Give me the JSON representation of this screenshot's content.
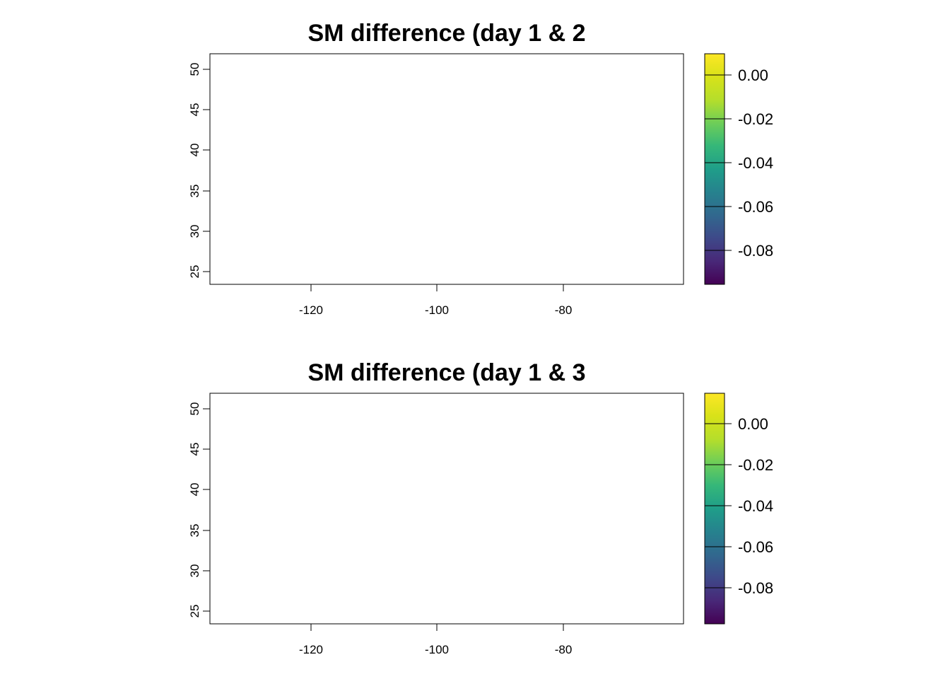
{
  "chart_data": [
    {
      "type": "heatmap",
      "title": "SM difference (day 1 & 2",
      "xlim": [
        -135,
        -60
      ],
      "ylim": [
        23.5,
        52
      ],
      "x_ticks": [
        -120,
        -100,
        -80
      ],
      "x_tick_labels": [
        "-120",
        "-100",
        "-80"
      ],
      "y_ticks": [
        25,
        30,
        35,
        40,
        45,
        50
      ],
      "y_tick_labels": [
        "25",
        "30",
        "35",
        "40",
        "45",
        "50"
      ],
      "legend": {
        "placement": "right",
        "range": [
          -0.096,
          0.01
        ],
        "ticks": [
          0.0,
          -0.02,
          -0.04,
          -0.06,
          -0.08
        ],
        "tick_labels": [
          "0.00",
          "-0.02",
          "-0.04",
          "-0.06",
          "-0.08"
        ]
      },
      "colors": {
        "land_typical": "#b5de2b",
        "min_color": "#440154",
        "max_color": "#fde725"
      },
      "grid": false
    },
    {
      "type": "heatmap",
      "title": "SM difference (day 1 & 3",
      "xlim": [
        -135,
        -60
      ],
      "ylim": [
        23.5,
        52
      ],
      "x_ticks": [
        -120,
        -100,
        -80
      ],
      "x_tick_labels": [
        "-120",
        "-100",
        "-80"
      ],
      "y_ticks": [
        25,
        30,
        35,
        40,
        45,
        50
      ],
      "y_tick_labels": [
        "25",
        "30",
        "35",
        "40",
        "45",
        "50"
      ],
      "legend": {
        "placement": "right",
        "range": [
          -0.099,
          0.015
        ],
        "ticks": [
          0.0,
          -0.02,
          -0.04,
          -0.06,
          -0.08
        ],
        "tick_labels": [
          "0.00",
          "-0.02",
          "-0.04",
          "-0.06",
          "-0.08"
        ]
      },
      "colors": {
        "land_typical": "#a8db34",
        "min_color": "#440154",
        "max_color": "#fde725"
      },
      "grid": false
    }
  ]
}
